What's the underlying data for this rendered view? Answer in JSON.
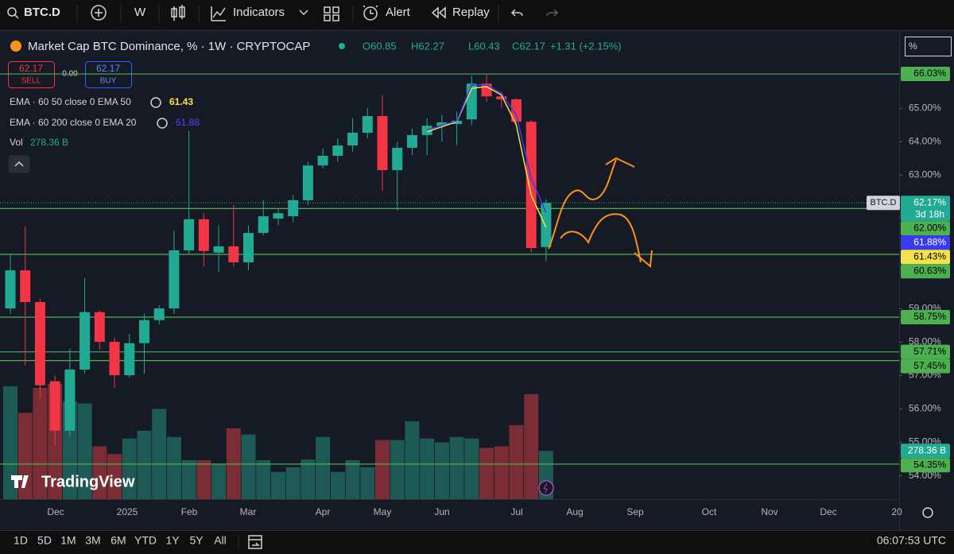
{
  "toolbar": {
    "symbol": "BTC.D",
    "interval": "W",
    "indicators": "Indicators",
    "alert": "Alert",
    "replay": "Replay"
  },
  "legend": {
    "title": "Market Cap BTC Dominance, % · 1W · CRYPTOCAP",
    "ohlc": [
      "O60.85",
      "H62.27",
      "L60.43",
      "C62.17",
      "+1.31 (+2.15%)"
    ],
    "sell_price": "62.17",
    "sell": "SELL",
    "spread": "0.00",
    "buy_price": "62.17",
    "buy": "BUY",
    "indicators": [
      {
        "text": "EMA · 60 50 close 0 EMA 50",
        "value": "61.43"
      },
      {
        "text": "EMA · 60 200 close 0 EMA 20",
        "value": "61.88"
      },
      {
        "text": "Vol",
        "value": "278.36 B"
      }
    ]
  },
  "scale_unit": "%",
  "watermark": "TradingView",
  "chart_data": {
    "type": "candlestick",
    "open": [
      59.01,
      60.15,
      59.2,
      56.83,
      55.35,
      57.18,
      58.9,
      58.01,
      57.01,
      57.97,
      58.66,
      59.01,
      60.75,
      61.68,
      60.68,
      60.87,
      60.39,
      61.27,
      61.7,
      61.77,
      62.25,
      63.29,
      63.58,
      63.89,
      64.27,
      64.77,
      63.15,
      63.82,
      64.2,
      64.48,
      64.53,
      64.67,
      65.74,
      65.36,
      65.27,
      64.6,
      60.85
    ],
    "high": [
      60.63,
      61.46,
      59.3,
      57.0,
      57.8,
      59.92,
      58.95,
      58.13,
      58.25,
      58.85,
      59.1,
      61.34,
      64.32,
      61.87,
      61.5,
      62.11,
      61.5,
      62.25,
      62.0,
      62.4,
      63.4,
      63.8,
      64.1,
      64.7,
      65.01,
      65.39,
      64.0,
      64.4,
      64.7,
      64.8,
      64.9,
      65.98,
      66.03,
      65.5,
      65.3,
      64.65,
      62.27
    ],
    "low": [
      58.85,
      57.3,
      56.35,
      54.92,
      55.2,
      57.06,
      57.78,
      56.63,
      56.94,
      57.06,
      58.54,
      58.85,
      60.63,
      60.27,
      60.1,
      60.27,
      60.15,
      61.2,
      61.5,
      61.6,
      62.1,
      63.2,
      63.4,
      63.7,
      64.1,
      62.53,
      61.94,
      63.6,
      63.6,
      64.0,
      63.9,
      64.5,
      65.2,
      65.0,
      64.5,
      60.68,
      60.43
    ],
    "close": [
      60.15,
      59.2,
      56.71,
      55.35,
      57.18,
      58.9,
      58.01,
      57.01,
      57.97,
      58.66,
      59.01,
      60.75,
      61.68,
      60.73,
      60.87,
      60.39,
      61.27,
      61.77,
      61.86,
      62.25,
      63.29,
      63.58,
      63.89,
      64.27,
      64.77,
      63.15,
      63.82,
      64.2,
      64.48,
      64.58,
      64.63,
      65.74,
      65.36,
      65.27,
      64.6,
      60.82,
      62.17
    ],
    "volume": [
      651,
      498,
      642,
      665,
      566,
      552,
      305,
      260,
      350,
      395,
      521,
      359,
      225,
      225,
      202,
      409,
      373,
      225,
      157,
      184,
      229,
      359,
      157,
      225,
      184,
      341,
      341,
      449,
      350,
      328,
      359,
      350,
      296,
      305,
      427,
      606,
      278.36
    ],
    "volume_label": {
      "value": 278.36,
      "label": "278.36 B"
    },
    "up_color": "#22ab94",
    "down_color": "#f23645",
    "volume_up_color": "#1d5a56",
    "volume_down_color": "#7b2d35",
    "ylim": [
      53.3,
      67.34
    ],
    "yticks": [
      {
        "value": 65,
        "label": "65.00%"
      },
      {
        "value": 64,
        "label": "64.00%"
      },
      {
        "value": 63,
        "label": "63.00%"
      },
      {
        "value": 59,
        "label": "59.00%"
      },
      {
        "value": 58,
        "label": "58.00%"
      },
      {
        "value": 57,
        "label": "57.00%"
      },
      {
        "value": 56,
        "label": "56.00%"
      },
      {
        "value": 55,
        "label": "55.00%"
      },
      {
        "value": 54,
        "label": "54.00%"
      }
    ],
    "levels": {
      "color": "#4caf50",
      "values": [
        66.03,
        62.0,
        60.63,
        58.75,
        57.71,
        57.45,
        54.35
      ],
      "value_labels": [
        "66.03%",
        "62.00%",
        "60.63%",
        "58.75%",
        "57.71%",
        "57.45%",
        "54.35%"
      ]
    },
    "last": {
      "symbol": "BTC.D",
      "value": 62.17,
      "label": "62.17%",
      "countdown": "3d 18h"
    },
    "series": [
      {
        "name": "EMA 50",
        "color": "#f5e14b",
        "values": [
          null,
          null,
          null,
          null,
          null,
          null,
          null,
          null,
          null,
          null,
          null,
          null,
          null,
          null,
          null,
          null,
          null,
          null,
          null,
          null,
          null,
          null,
          null,
          null,
          null,
          null,
          null,
          null,
          64.3,
          64.45,
          64.6,
          65.6,
          65.65,
          65.4,
          64.5,
          62.4,
          61.43
        ],
        "last_label": "61.43%"
      },
      {
        "name": "EMA 20",
        "color": "#3a3af0",
        "values": [
          null,
          null,
          null,
          null,
          null,
          null,
          null,
          null,
          null,
          null,
          null,
          null,
          null,
          null,
          null,
          null,
          null,
          null,
          null,
          null,
          null,
          null,
          null,
          null,
          null,
          null,
          null,
          null,
          64.35,
          64.5,
          64.62,
          65.7,
          65.7,
          65.45,
          64.8,
          62.9,
          61.88
        ],
        "last_label": "61.88%"
      }
    ],
    "xlabels": [
      "Dec",
      "2025",
      "Feb",
      "Mar",
      "Apr",
      "May",
      "Jun",
      "Jul",
      "Aug",
      "Sep",
      "Oct",
      "Nov",
      "Dec",
      "20"
    ]
  },
  "bottom_bar": {
    "ranges": [
      "1D",
      "5D",
      "1M",
      "3M",
      "6M",
      "YTD",
      "1Y",
      "5Y",
      "All"
    ],
    "clock": "06:07:53 UTC"
  }
}
